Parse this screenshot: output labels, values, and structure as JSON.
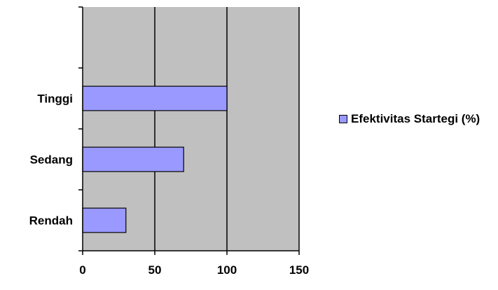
{
  "chart_data": {
    "type": "bar",
    "orientation": "horizontal",
    "categories": [
      "Tinggi",
      "Sedang",
      "Rendah"
    ],
    "series": [
      {
        "name": "Efektivitas Startegi (%)",
        "values": [
          100,
          70,
          30
        ]
      }
    ],
    "xlim": [
      0,
      150
    ],
    "x_ticks": [
      "0",
      "50",
      "100",
      "150"
    ],
    "title": "",
    "xlabel": "",
    "ylabel": "",
    "grid": "vertical",
    "legend_position": "right",
    "colors": {
      "bar": "#9999ff",
      "plot_background": "#c0c0c0",
      "gridline": "#000000"
    }
  },
  "legend": {
    "label": "Efektivitas Startegi (%)"
  }
}
